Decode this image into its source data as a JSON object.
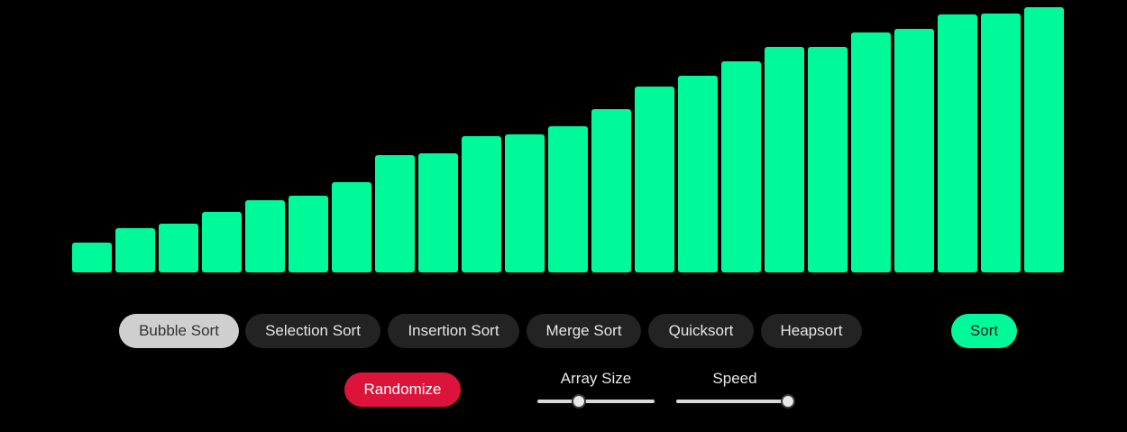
{
  "colors": {
    "bar": "#00FA9A",
    "sort_button": "#00FA9A",
    "randomize_button": "#DC143C",
    "background": "#000000"
  },
  "bars": {
    "max_value": 292,
    "values": [
      33,
      49,
      54,
      67,
      79,
      84,
      99,
      129,
      131,
      150,
      152,
      161,
      180,
      205,
      217,
      232,
      248,
      248,
      264,
      268,
      284,
      285,
      292
    ]
  },
  "algorithms": [
    {
      "label": "Bubble Sort",
      "active": true
    },
    {
      "label": "Selection Sort",
      "active": false
    },
    {
      "label": "Insertion Sort",
      "active": false
    },
    {
      "label": "Merge Sort",
      "active": false
    },
    {
      "label": "Quicksort",
      "active": false
    },
    {
      "label": "Heapsort",
      "active": false
    }
  ],
  "sort_button": {
    "label": "Sort"
  },
  "randomize_button": {
    "label": "Randomize"
  },
  "array_size_slider": {
    "label": "Array Size",
    "value_fraction": 0.35
  },
  "speed_slider": {
    "label": "Speed",
    "value_fraction": 0.95
  }
}
